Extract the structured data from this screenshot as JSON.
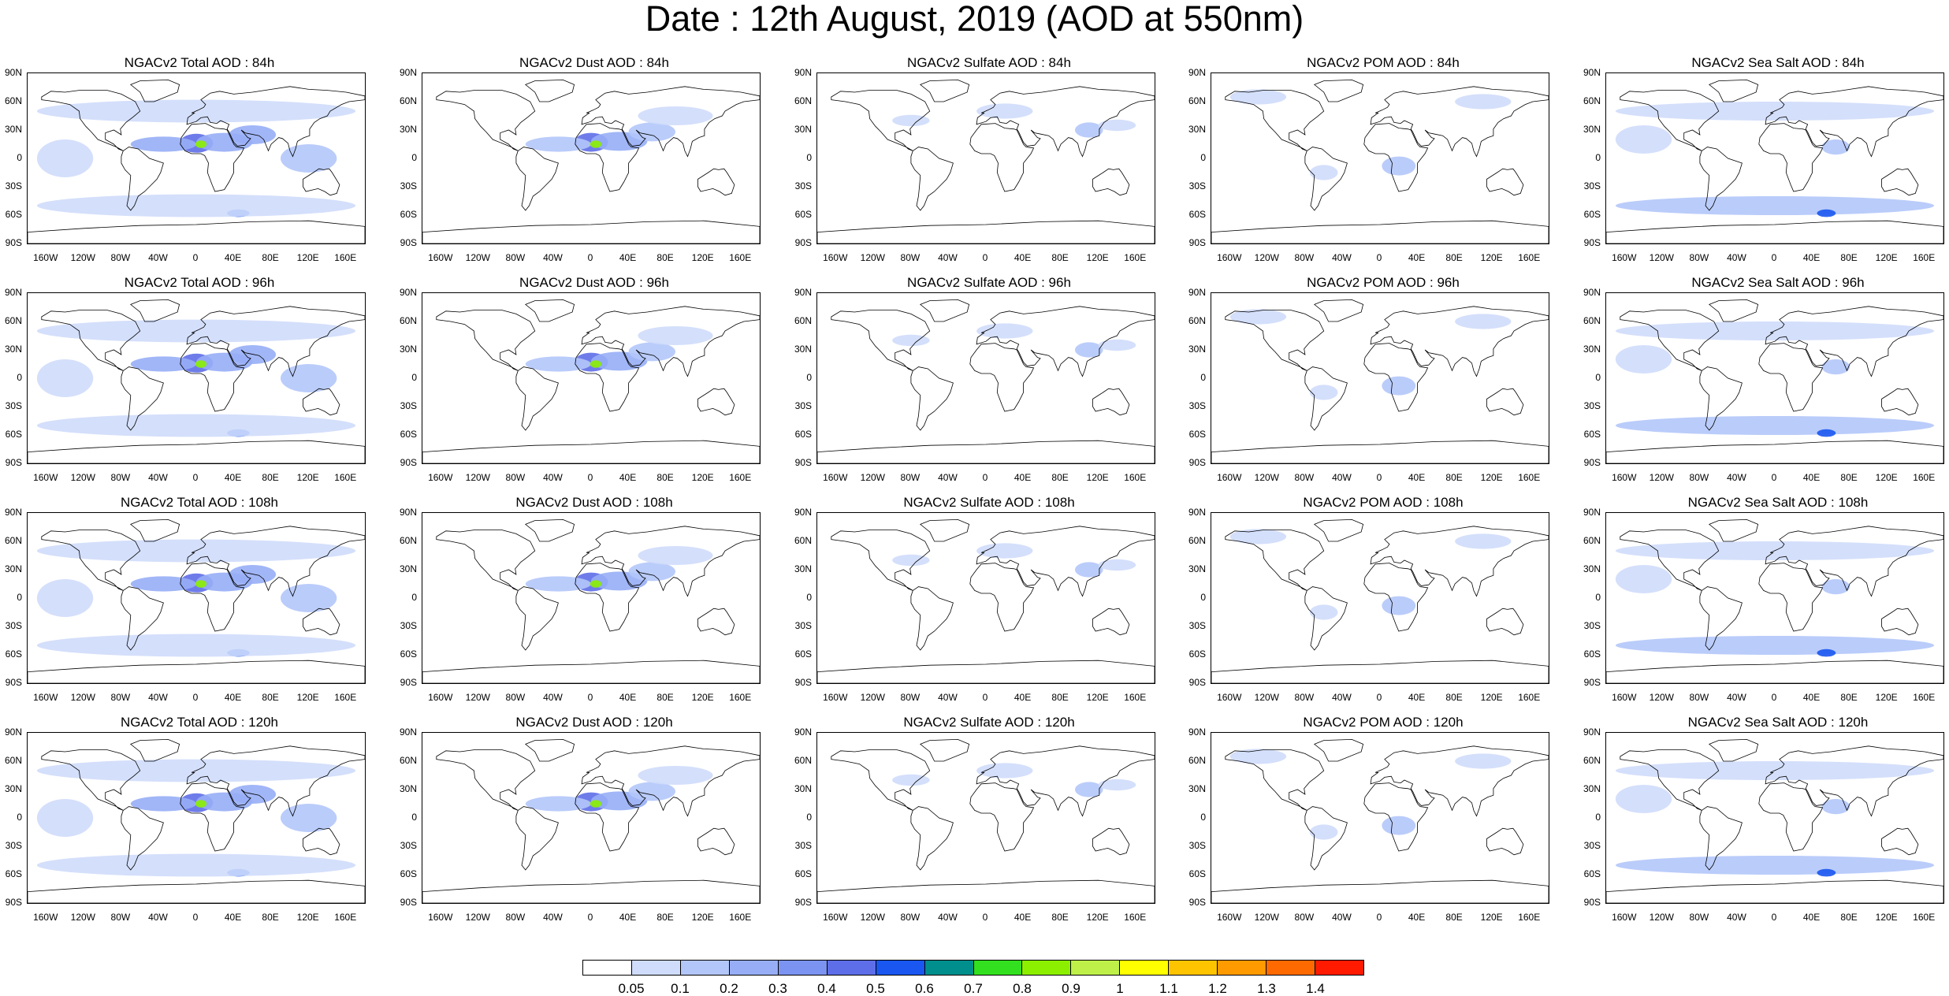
{
  "title": "Date : 12th August, 2019 (AOD at 550nm)",
  "chart_data": {
    "type": "heatmap",
    "projection": "cylindrical equidistant",
    "lat_ticks": [
      "90N",
      "60N",
      "30N",
      "0",
      "30S",
      "60S",
      "90S"
    ],
    "lon_ticks": [
      "160W",
      "120W",
      "80W",
      "40W",
      "0",
      "40E",
      "80E",
      "120E",
      "160E"
    ],
    "panels": [
      {
        "title": "NGACv2 Total AOD : 84h",
        "species": "total",
        "forecast_hour": 84
      },
      {
        "title": "NGACv2 Dust AOD : 84h",
        "species": "dust",
        "forecast_hour": 84
      },
      {
        "title": "NGACv2 Sulfate AOD : 84h",
        "species": "sulfate",
        "forecast_hour": 84
      },
      {
        "title": "NGACv2 POM AOD : 84h",
        "species": "pom",
        "forecast_hour": 84
      },
      {
        "title": "NGACv2 Sea Salt AOD : 84h",
        "species": "seasalt",
        "forecast_hour": 84
      },
      {
        "title": "NGACv2 Total AOD : 96h",
        "species": "total",
        "forecast_hour": 96
      },
      {
        "title": "NGACv2 Dust AOD : 96h",
        "species": "dust",
        "forecast_hour": 96
      },
      {
        "title": "NGACv2 Sulfate AOD : 96h",
        "species": "sulfate",
        "forecast_hour": 96
      },
      {
        "title": "NGACv2 POM AOD : 96h",
        "species": "pom",
        "forecast_hour": 96
      },
      {
        "title": "NGACv2 Sea Salt AOD : 96h",
        "species": "seasalt",
        "forecast_hour": 96
      },
      {
        "title": "NGACv2 Total AOD : 108h",
        "species": "total",
        "forecast_hour": 108
      },
      {
        "title": "NGACv2 Dust AOD : 108h",
        "species": "dust",
        "forecast_hour": 108
      },
      {
        "title": "NGACv2 Sulfate AOD : 108h",
        "species": "sulfate",
        "forecast_hour": 108
      },
      {
        "title": "NGACv2 POM AOD : 108h",
        "species": "pom",
        "forecast_hour": 108
      },
      {
        "title": "NGACv2 Sea Salt AOD : 108h",
        "species": "seasalt",
        "forecast_hour": 108
      },
      {
        "title": "NGACv2 Total AOD : 120h",
        "species": "total",
        "forecast_hour": 120
      },
      {
        "title": "NGACv2 Dust AOD : 120h",
        "species": "dust",
        "forecast_hour": 120
      },
      {
        "title": "NGACv2 Sulfate AOD : 120h",
        "species": "sulfate",
        "forecast_hour": 120
      },
      {
        "title": "NGACv2 POM AOD : 120h",
        "species": "pom",
        "forecast_hour": 120
      },
      {
        "title": "NGACv2 Sea Salt  AOD : 120h",
        "species": "seasalt",
        "forecast_hour": 120
      }
    ],
    "colorbar": {
      "labels": [
        "0.05",
        "0.1",
        "0.2",
        "0.3",
        "0.4",
        "0.5",
        "0.6",
        "0.7",
        "0.8",
        "0.9",
        "1",
        "1.1",
        "1.2",
        "1.3",
        "1.4"
      ],
      "colors": [
        "#ffffff",
        "#cfdcfb",
        "#b3c6f9",
        "#97aef6",
        "#7b93f1",
        "#5e6ee8",
        "#1a57f0",
        "#008f8c",
        "#33e01f",
        "#8cef00",
        "#bff04a",
        "#ffff00",
        "#ffc400",
        "#ff9a00",
        "#ff6a00",
        "#ff1a00"
      ]
    },
    "regions": {
      "total": [
        {
          "lon": 0,
          "lat": 16,
          "level": 5,
          "rx": 18,
          "ry": 10
        },
        {
          "lon": 30,
          "lat": 17,
          "level": 3,
          "rx": 30,
          "ry": 10
        },
        {
          "lon": -35,
          "lat": 15,
          "level": 3,
          "rx": 35,
          "ry": 8
        },
        {
          "lon": 60,
          "lat": 25,
          "level": 3,
          "rx": 25,
          "ry": 10
        },
        {
          "lon": 5,
          "lat": 15,
          "level": 9,
          "rx": 6,
          "ry": 4
        },
        {
          "lon": 45,
          "lat": -58,
          "level": 6,
          "rx": 12,
          "ry": 4
        },
        {
          "lon": 0,
          "lat": -50,
          "level": 1,
          "rx": 170,
          "ry": 12
        },
        {
          "lon": 0,
          "lat": 50,
          "level": 1,
          "rx": 170,
          "ry": 12
        },
        {
          "lon": -140,
          "lat": 0,
          "level": 1,
          "rx": 30,
          "ry": 20
        },
        {
          "lon": 120,
          "lat": 0,
          "level": 2,
          "rx": 30,
          "ry": 15
        }
      ],
      "dust": [
        {
          "lon": 0,
          "lat": 17,
          "level": 5,
          "rx": 18,
          "ry": 10
        },
        {
          "lon": 30,
          "lat": 18,
          "level": 3,
          "rx": 30,
          "ry": 10
        },
        {
          "lon": -35,
          "lat": 15,
          "level": 2,
          "rx": 35,
          "ry": 8
        },
        {
          "lon": 65,
          "lat": 28,
          "level": 2,
          "rx": 25,
          "ry": 10
        },
        {
          "lon": 5,
          "lat": 15,
          "level": 9,
          "rx": 6,
          "ry": 4
        },
        {
          "lon": 90,
          "lat": 45,
          "level": 1,
          "rx": 40,
          "ry": 10
        }
      ],
      "sulfate": [
        {
          "lon": 110,
          "lat": 30,
          "level": 2,
          "rx": 15,
          "ry": 8
        },
        {
          "lon": 20,
          "lat": 50,
          "level": 1,
          "rx": 30,
          "ry": 8
        },
        {
          "lon": -80,
          "lat": 40,
          "level": 1,
          "rx": 20,
          "ry": 6
        },
        {
          "lon": 140,
          "lat": 35,
          "level": 1,
          "rx": 20,
          "ry": 6
        }
      ],
      "pom": [
        {
          "lon": 20,
          "lat": -8,
          "level": 2,
          "rx": 18,
          "ry": 10
        },
        {
          "lon": -60,
          "lat": -15,
          "level": 1,
          "rx": 15,
          "ry": 8
        },
        {
          "lon": -130,
          "lat": 65,
          "level": 1,
          "rx": 30,
          "ry": 8
        },
        {
          "lon": 110,
          "lat": 60,
          "level": 1,
          "rx": 30,
          "ry": 8
        }
      ],
      "seasalt": [
        {
          "lon": 0,
          "lat": -50,
          "level": 2,
          "rx": 170,
          "ry": 10
        },
        {
          "lon": 55,
          "lat": -58,
          "level": 6,
          "rx": 10,
          "ry": 4
        },
        {
          "lon": 0,
          "lat": 50,
          "level": 1,
          "rx": 170,
          "ry": 10
        },
        {
          "lon": 65,
          "lat": 12,
          "level": 2,
          "rx": 15,
          "ry": 8
        },
        {
          "lon": -140,
          "lat": 20,
          "level": 1,
          "rx": 30,
          "ry": 15
        }
      ]
    }
  }
}
